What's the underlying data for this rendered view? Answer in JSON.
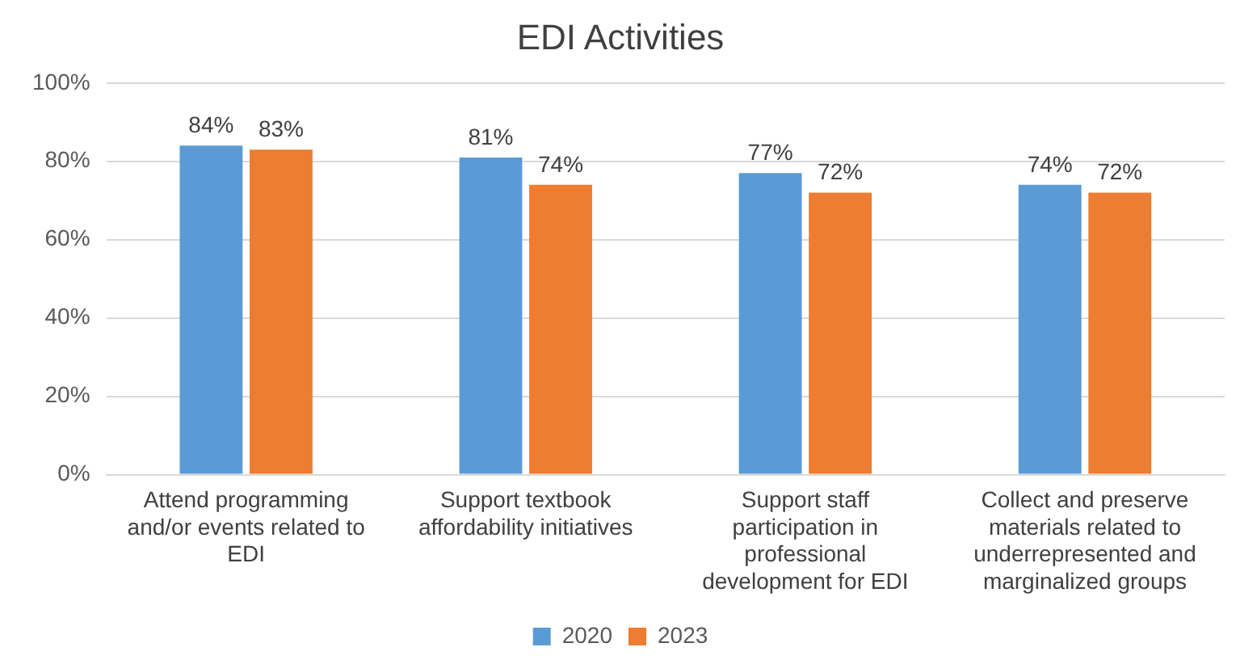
{
  "chart_data": {
    "type": "bar",
    "title": "EDI Activities",
    "categories": [
      "Attend programming and/or events related to EDI",
      "Support textbook affordability initiatives",
      "Support staff participation in professional development for EDI",
      "Collect and preserve materials related to underrepresented and marginalized groups"
    ],
    "series": [
      {
        "name": "2020",
        "color": "#5b9bd5",
        "values": [
          84,
          81,
          77,
          74
        ],
        "value_labels": [
          "84%",
          "81%",
          "77%",
          "74%"
        ]
      },
      {
        "name": "2023",
        "color": "#ed7d31",
        "values": [
          83,
          74,
          72,
          72
        ],
        "value_labels": [
          "83%",
          "74%",
          "72%",
          "72%"
        ]
      }
    ],
    "ylim": [
      0,
      100
    ],
    "yticks": [
      {
        "value": 0,
        "label": "0%"
      },
      {
        "value": 20,
        "label": "20%"
      },
      {
        "value": 40,
        "label": "40%"
      },
      {
        "value": 60,
        "label": "60%"
      },
      {
        "value": 80,
        "label": "80%"
      },
      {
        "value": 100,
        "label": "100%"
      }
    ],
    "grid": "y",
    "legend": "bottom"
  }
}
